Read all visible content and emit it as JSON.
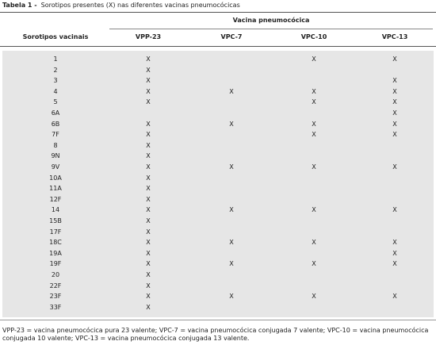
{
  "title": {
    "label": "Tabela 1 -",
    "text": "Sorotipos presentes (X) nas diferentes vacinas pneumocócicas"
  },
  "table": {
    "group_header": "Vacina pneumocócica",
    "columns": [
      "Sorotipos vacinais",
      "VPP-23",
      "VPC-7",
      "VPC-10",
      "VPC-13"
    ],
    "rows": [
      [
        "1",
        "X",
        null,
        "X",
        "X"
      ],
      [
        "2",
        "X",
        null,
        null,
        null
      ],
      [
        "3",
        "X",
        null,
        null,
        "X"
      ],
      [
        "4",
        "X",
        "X",
        "X",
        "X"
      ],
      [
        "5",
        "X",
        null,
        "X",
        "X"
      ],
      [
        "6A",
        null,
        null,
        null,
        "X"
      ],
      [
        "6B",
        "X",
        "X",
        "X",
        "X"
      ],
      [
        "7F",
        "X",
        null,
        "X",
        "X"
      ],
      [
        "8",
        "X",
        null,
        null,
        null
      ],
      [
        "9N",
        "X",
        null,
        null,
        null
      ],
      [
        "9V",
        "X",
        "X",
        "X",
        "X"
      ],
      [
        "10A",
        "X",
        null,
        null,
        null
      ],
      [
        "11A",
        "X",
        null,
        null,
        null
      ],
      [
        "12F",
        "X",
        null,
        null,
        null
      ],
      [
        "14",
        "X",
        "X",
        "X",
        "X"
      ],
      [
        "15B",
        "X",
        null,
        null,
        null
      ],
      [
        "17F",
        "X",
        null,
        null,
        null
      ],
      [
        "18C",
        "X",
        "X",
        "X",
        "X"
      ],
      [
        "19A",
        "X",
        null,
        null,
        "X"
      ],
      [
        "19F",
        "X",
        "X",
        "X",
        "X"
      ],
      [
        "20",
        "X",
        null,
        null,
        null
      ],
      [
        "22F",
        "X",
        null,
        null,
        null
      ],
      [
        "23F",
        "X",
        "X",
        "X",
        "X"
      ],
      [
        "33F",
        "X",
        null,
        null,
        null
      ]
    ]
  },
  "footnote": "VPP-23 = vacina pneumocócica pura 23 valente; VPC-7 = vacina pneumocócica conjugada 7 valente; VPC-10 = vacina pneumocócica conjugada 10 valente; VPC-13 = vacina pneumocócica conjugada 13 valente."
}
